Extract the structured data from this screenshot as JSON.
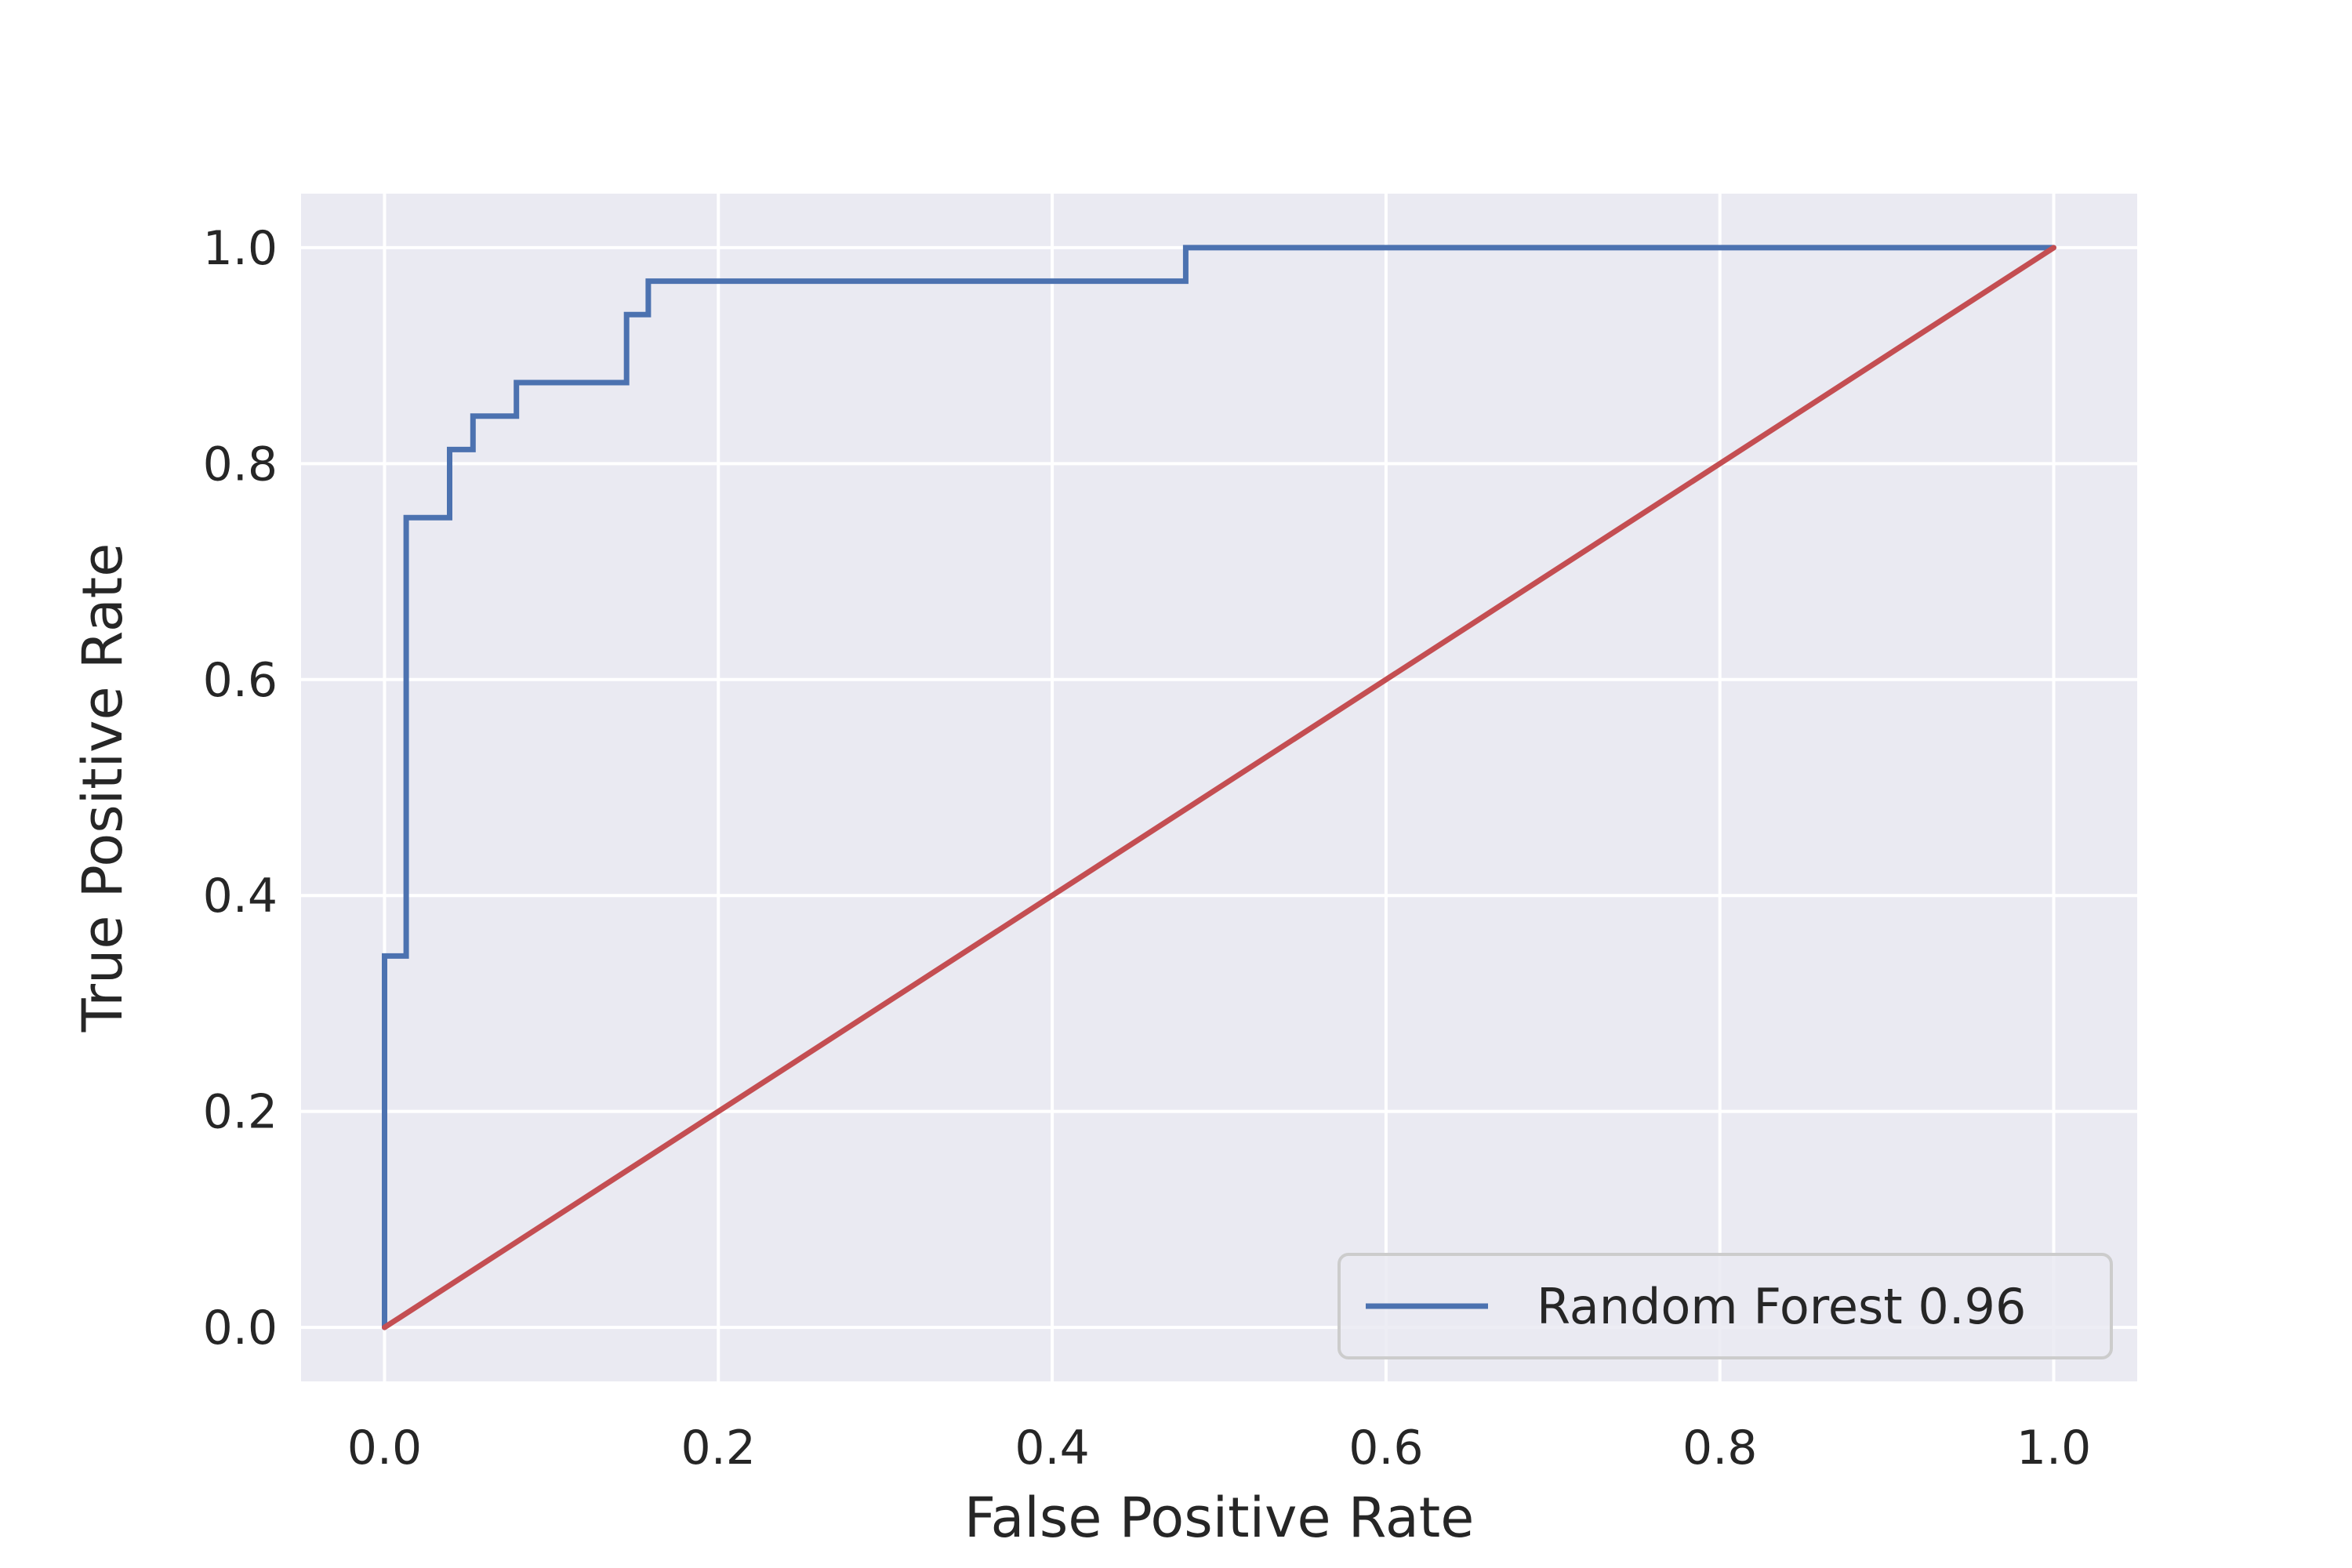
{
  "chart_data": {
    "type": "line",
    "title": "",
    "xlabel": "False Positive Rate",
    "ylabel": "True Positive Rate",
    "xlim": [
      -0.05,
      1.05
    ],
    "ylim": [
      -0.05,
      1.05
    ],
    "xticks": [
      0.0,
      0.2,
      0.4,
      0.6,
      0.8,
      1.0
    ],
    "xtick_labels": [
      "0.0",
      "0.2",
      "0.4",
      "0.6",
      "0.8",
      "1.0"
    ],
    "yticks": [
      0.0,
      0.2,
      0.4,
      0.6,
      0.8,
      1.0
    ],
    "ytick_labels": [
      "0.0",
      "0.2",
      "0.4",
      "0.6",
      "0.8",
      "1.0"
    ],
    "grid": true,
    "background_color": "#eaeaf2",
    "grid_color": "#ffffff",
    "legend": {
      "placement": "lower-right",
      "entries": [
        "Random Forest 0.96"
      ]
    },
    "series": [
      {
        "name": "Random Forest 0.96",
        "color": "#4c72b0",
        "style": "step",
        "x": [
          0.0,
          0.0,
          0.013,
          0.013,
          0.039,
          0.039,
          0.053,
          0.053,
          0.079,
          0.079,
          0.145,
          0.145,
          0.158,
          0.158,
          0.48,
          0.48,
          1.0
        ],
        "y": [
          0.0,
          0.344,
          0.344,
          0.75,
          0.75,
          0.813,
          0.813,
          0.844,
          0.844,
          0.875,
          0.875,
          0.938,
          0.938,
          0.969,
          0.969,
          1.0,
          1.0
        ]
      },
      {
        "name": "",
        "color": "#c44e52",
        "style": "line",
        "x": [
          0.0,
          1.0
        ],
        "y": [
          0.0,
          1.0
        ]
      }
    ]
  }
}
